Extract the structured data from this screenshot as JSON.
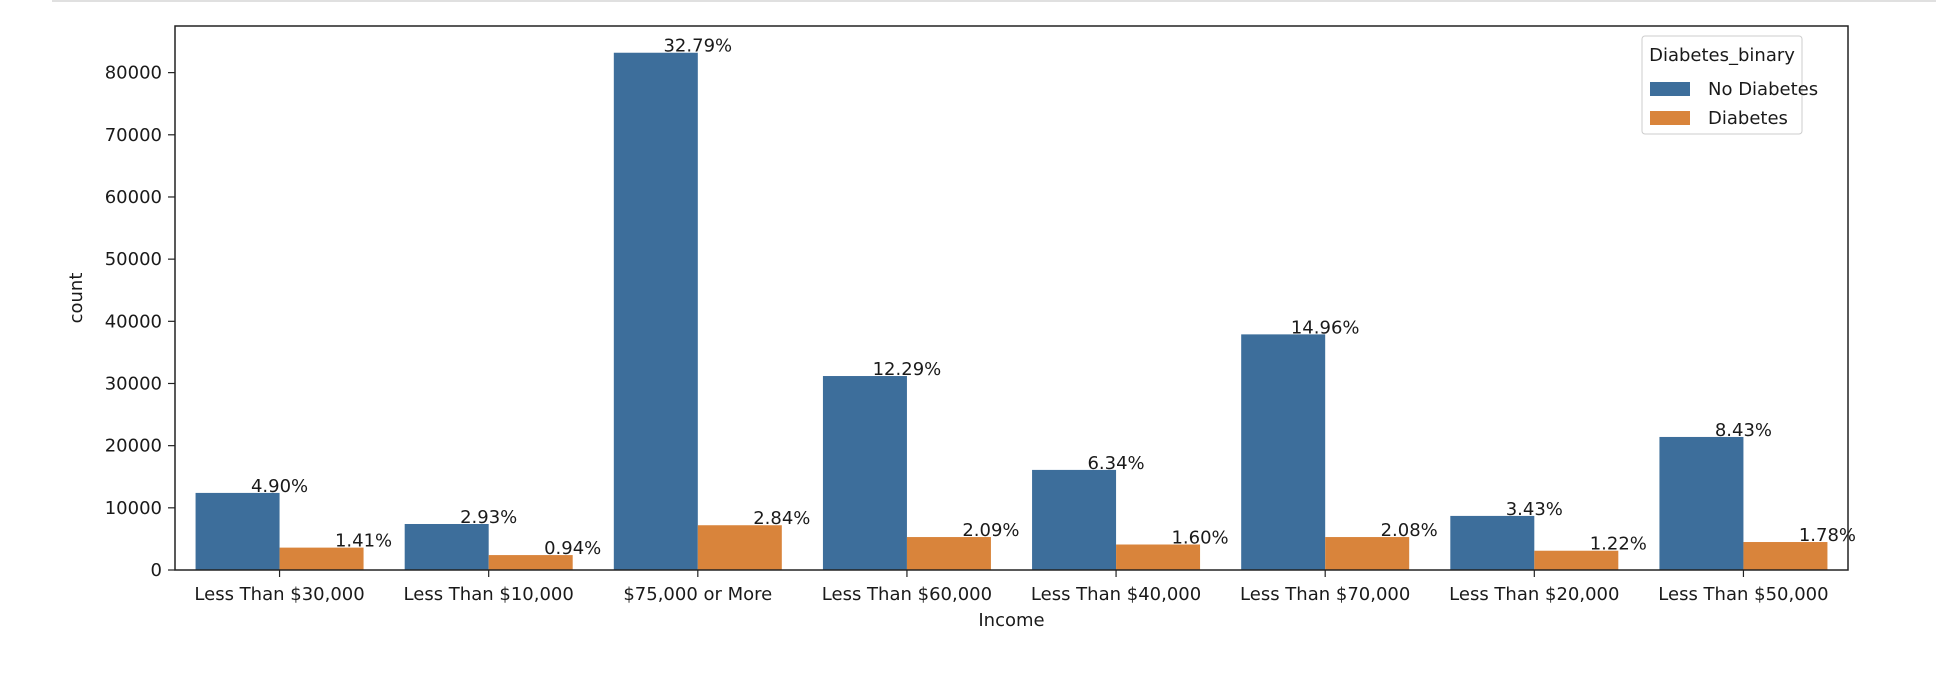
{
  "chart_data": {
    "type": "bar",
    "xlabel": "Income",
    "ylabel": "count",
    "ylim": [
      0,
      87500
    ],
    "yticks": [
      0,
      10000,
      20000,
      30000,
      40000,
      50000,
      60000,
      70000,
      80000
    ],
    "categories": [
      "Less Than $30,000",
      "Less Than $10,000",
      "$75,000 or More",
      "Less Than $60,000",
      "Less Than $40,000",
      "Less Than $70,000",
      "Less Than $20,000",
      "Less Than $50,000"
    ],
    "series": [
      {
        "name": "No Diabetes",
        "color": "#3d6e9b",
        "values": [
          12400,
          7400,
          83200,
          31200,
          16100,
          37900,
          8700,
          21400
        ],
        "labels": [
          "4.90%",
          "2.93%",
          "32.79%",
          "12.29%",
          "6.34%",
          "14.96%",
          "3.43%",
          "8.43%"
        ]
      },
      {
        "name": "Diabetes",
        "color": "#d9843b",
        "values": [
          3600,
          2400,
          7200,
          5300,
          4100,
          5300,
          3100,
          4500
        ],
        "labels": [
          "1.41%",
          "0.94%",
          "2.84%",
          "2.09%",
          "1.60%",
          "2.08%",
          "1.22%",
          "1.78%"
        ]
      }
    ],
    "legend": {
      "title": "Diabetes_binary",
      "position": "top-right"
    },
    "grid": false
  }
}
